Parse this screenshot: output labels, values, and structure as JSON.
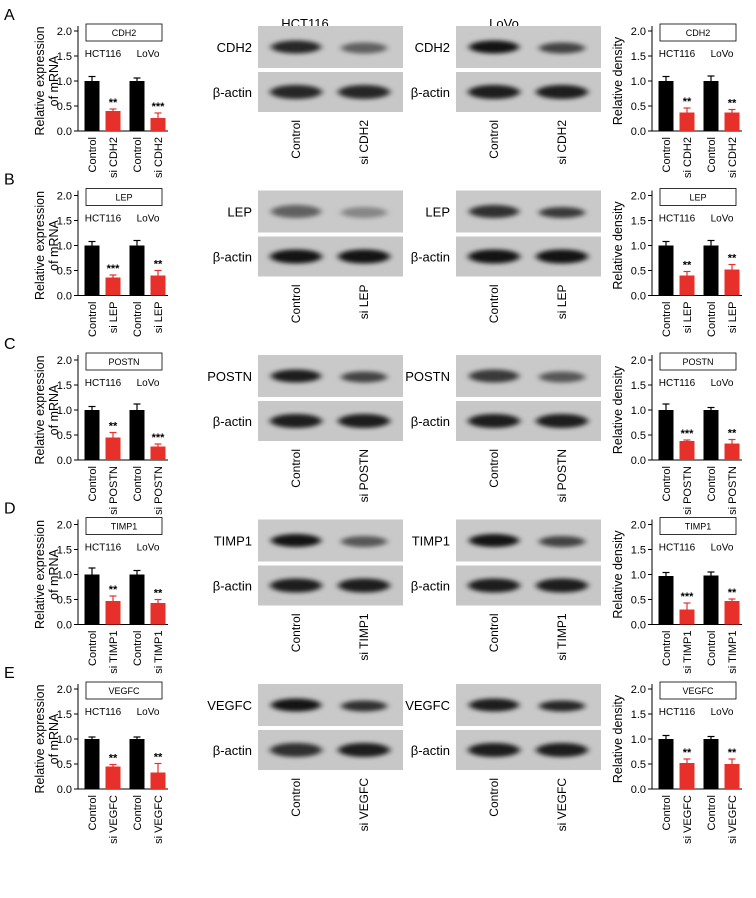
{
  "figure": {
    "panel_letters": [
      "A",
      "B",
      "C",
      "D",
      "E"
    ],
    "column_headers": [
      "HCT116",
      "LoVo"
    ],
    "actin_label": "β-actin",
    "blot_lanes": [
      "Control",
      "si"
    ],
    "mrna_ylabel": [
      "Relative expression",
      "of mRNA"
    ],
    "density_ylabel": "Relative density",
    "group_labels": [
      "HCT116",
      "LoVo"
    ],
    "colors": {
      "control": "#000000",
      "knockdown": "#e8302a"
    }
  },
  "chart_data": [
    {
      "panel": "A",
      "assay": "mRNA",
      "type": "bar",
      "title": "CDH2",
      "categories": [
        "Control",
        "si CDH2",
        "Control",
        "si CDH2"
      ],
      "values": [
        1.0,
        0.4,
        1.0,
        0.26
      ],
      "errors": [
        0.09,
        0.04,
        0.06,
        0.1
      ],
      "significance": [
        "",
        "**",
        "",
        "***"
      ],
      "ylim": [
        0,
        2.0
      ],
      "yticks": [
        "0.0",
        "0.5",
        "1.0",
        "1.5",
        "2.0"
      ]
    },
    {
      "panel": "A",
      "assay": "density",
      "type": "bar",
      "title": "CDH2",
      "categories": [
        "Control",
        "si CDH2",
        "Control",
        "si CDH2"
      ],
      "values": [
        1.0,
        0.37,
        1.0,
        0.37
      ],
      "errors": [
        0.09,
        0.09,
        0.1,
        0.06
      ],
      "significance": [
        "",
        "**",
        "",
        "**"
      ],
      "ylim": [
        0,
        2.0
      ],
      "yticks": [
        "0.0",
        "0.5",
        "1.0",
        "1.5",
        "2.0"
      ]
    },
    {
      "panel": "B",
      "assay": "mRNA",
      "type": "bar",
      "title": "LEP",
      "categories": [
        "Control",
        "si LEP",
        "Control",
        "si LEP"
      ],
      "values": [
        1.0,
        0.36,
        1.0,
        0.4
      ],
      "errors": [
        0.08,
        0.05,
        0.1,
        0.1
      ],
      "significance": [
        "",
        "***",
        "",
        "**"
      ],
      "ylim": [
        0,
        2.0
      ],
      "yticks": [
        "0.0",
        "0.5",
        "1.0",
        "1.5",
        "2.0"
      ]
    },
    {
      "panel": "B",
      "assay": "density",
      "type": "bar",
      "title": "LEP",
      "categories": [
        "Control",
        "si LEP",
        "Control",
        "si LEP"
      ],
      "values": [
        1.0,
        0.4,
        1.0,
        0.52
      ],
      "errors": [
        0.08,
        0.08,
        0.1,
        0.1
      ],
      "significance": [
        "",
        "**",
        "",
        "**"
      ],
      "ylim": [
        0,
        2.0
      ],
      "yticks": [
        "0.0",
        "0.5",
        "1.0",
        "1.5",
        "2.0"
      ]
    },
    {
      "panel": "C",
      "assay": "mRNA",
      "type": "bar",
      "title": "POSTN",
      "categories": [
        "Control",
        "si POSTN",
        "Control",
        "si POSTN"
      ],
      "values": [
        1.0,
        0.45,
        1.0,
        0.27
      ],
      "errors": [
        0.07,
        0.1,
        0.12,
        0.05
      ],
      "significance": [
        "",
        "**",
        "",
        "***"
      ],
      "ylim": [
        0,
        2.0
      ],
      "yticks": [
        "0.0",
        "0.5",
        "1.0",
        "1.5",
        "2.0"
      ]
    },
    {
      "panel": "C",
      "assay": "density",
      "type": "bar",
      "title": "POSTN",
      "categories": [
        "Control",
        "si POSTN",
        "Control",
        "si POSTN"
      ],
      "values": [
        1.0,
        0.38,
        1.0,
        0.33
      ],
      "errors": [
        0.12,
        0.02,
        0.05,
        0.08
      ],
      "significance": [
        "",
        "***",
        "",
        "**"
      ],
      "ylim": [
        0,
        2.0
      ],
      "yticks": [
        "0.0",
        "0.5",
        "1.0",
        "1.5",
        "2.0"
      ]
    },
    {
      "panel": "D",
      "assay": "mRNA",
      "type": "bar",
      "title": "TIMP1",
      "categories": [
        "Control",
        "si TIMP1",
        "Control",
        "si TIMP1"
      ],
      "values": [
        1.0,
        0.47,
        1.0,
        0.43
      ],
      "errors": [
        0.13,
        0.1,
        0.08,
        0.07
      ],
      "significance": [
        "",
        "**",
        "",
        "**"
      ],
      "ylim": [
        0,
        2.0
      ],
      "yticks": [
        "0.0",
        "0.5",
        "1.0",
        "1.5",
        "2.0"
      ]
    },
    {
      "panel": "D",
      "assay": "density",
      "type": "bar",
      "title": "TIMP1",
      "categories": [
        "Control",
        "si TIMP1",
        "Control",
        "si TIMP1"
      ],
      "values": [
        0.97,
        0.3,
        0.98,
        0.47
      ],
      "errors": [
        0.07,
        0.13,
        0.07,
        0.04
      ],
      "significance": [
        "",
        "***",
        "",
        "**"
      ],
      "ylim": [
        0,
        2.0
      ],
      "yticks": [
        "0.0",
        "0.5",
        "1.0",
        "1.5",
        "2.0"
      ]
    },
    {
      "panel": "E",
      "assay": "mRNA",
      "type": "bar",
      "title": "VEGFC",
      "categories": [
        "Control",
        "si VEGFC",
        "Control",
        "si VEGFC"
      ],
      "values": [
        1.0,
        0.45,
        1.0,
        0.33
      ],
      "errors": [
        0.04,
        0.04,
        0.04,
        0.18
      ],
      "significance": [
        "",
        "**",
        "",
        "**"
      ],
      "ylim": [
        0,
        2.0
      ],
      "yticks": [
        "0.0",
        "0.5",
        "1.0",
        "1.5",
        "2.0"
      ]
    },
    {
      "panel": "E",
      "assay": "density",
      "type": "bar",
      "title": "VEGFC",
      "categories": [
        "Control",
        "si VEGFC",
        "Control",
        "si VEGFC"
      ],
      "values": [
        1.0,
        0.52,
        1.0,
        0.5
      ],
      "errors": [
        0.07,
        0.08,
        0.05,
        0.1
      ],
      "significance": [
        "",
        "**",
        "",
        "**"
      ],
      "ylim": [
        0,
        2.0
      ],
      "yticks": [
        "0.0",
        "0.5",
        "1.0",
        "1.5",
        "2.0"
      ]
    }
  ],
  "blots": [
    {
      "panel": "A",
      "protein": "CDH2",
      "si_label": "si CDH2",
      "target_intensity": {
        "HCT116": [
          0.85,
          0.55
        ],
        "LoVo": [
          0.95,
          0.7
        ]
      },
      "actin_intensity": {
        "HCT116": [
          0.85,
          0.85
        ],
        "LoVo": [
          0.9,
          0.9
        ]
      }
    },
    {
      "panel": "B",
      "protein": "LEP",
      "si_label": "si LEP",
      "target_intensity": {
        "HCT116": [
          0.55,
          0.35
        ],
        "LoVo": [
          0.8,
          0.75
        ]
      },
      "actin_intensity": {
        "HCT116": [
          0.95,
          0.95
        ],
        "LoVo": [
          0.95,
          0.95
        ]
      }
    },
    {
      "panel": "C",
      "protein": "POSTN",
      "si_label": "si POSTN",
      "target_intensity": {
        "HCT116": [
          0.9,
          0.7
        ],
        "LoVo": [
          0.75,
          0.6
        ]
      },
      "actin_intensity": {
        "HCT116": [
          0.9,
          0.9
        ],
        "LoVo": [
          0.9,
          0.9
        ]
      }
    },
    {
      "panel": "D",
      "protein": "TIMP1",
      "si_label": "si TIMP1",
      "target_intensity": {
        "HCT116": [
          0.95,
          0.6
        ],
        "LoVo": [
          0.95,
          0.7
        ]
      },
      "actin_intensity": {
        "HCT116": [
          0.9,
          0.9
        ],
        "LoVo": [
          0.9,
          0.9
        ]
      }
    },
    {
      "panel": "E",
      "protein": "VEGFC",
      "si_label": "si VEGFC",
      "target_intensity": {
        "HCT116": [
          0.95,
          0.8
        ],
        "LoVo": [
          0.9,
          0.85
        ]
      },
      "actin_intensity": {
        "HCT116": [
          0.8,
          0.9
        ],
        "LoVo": [
          0.9,
          0.9
        ]
      }
    }
  ]
}
